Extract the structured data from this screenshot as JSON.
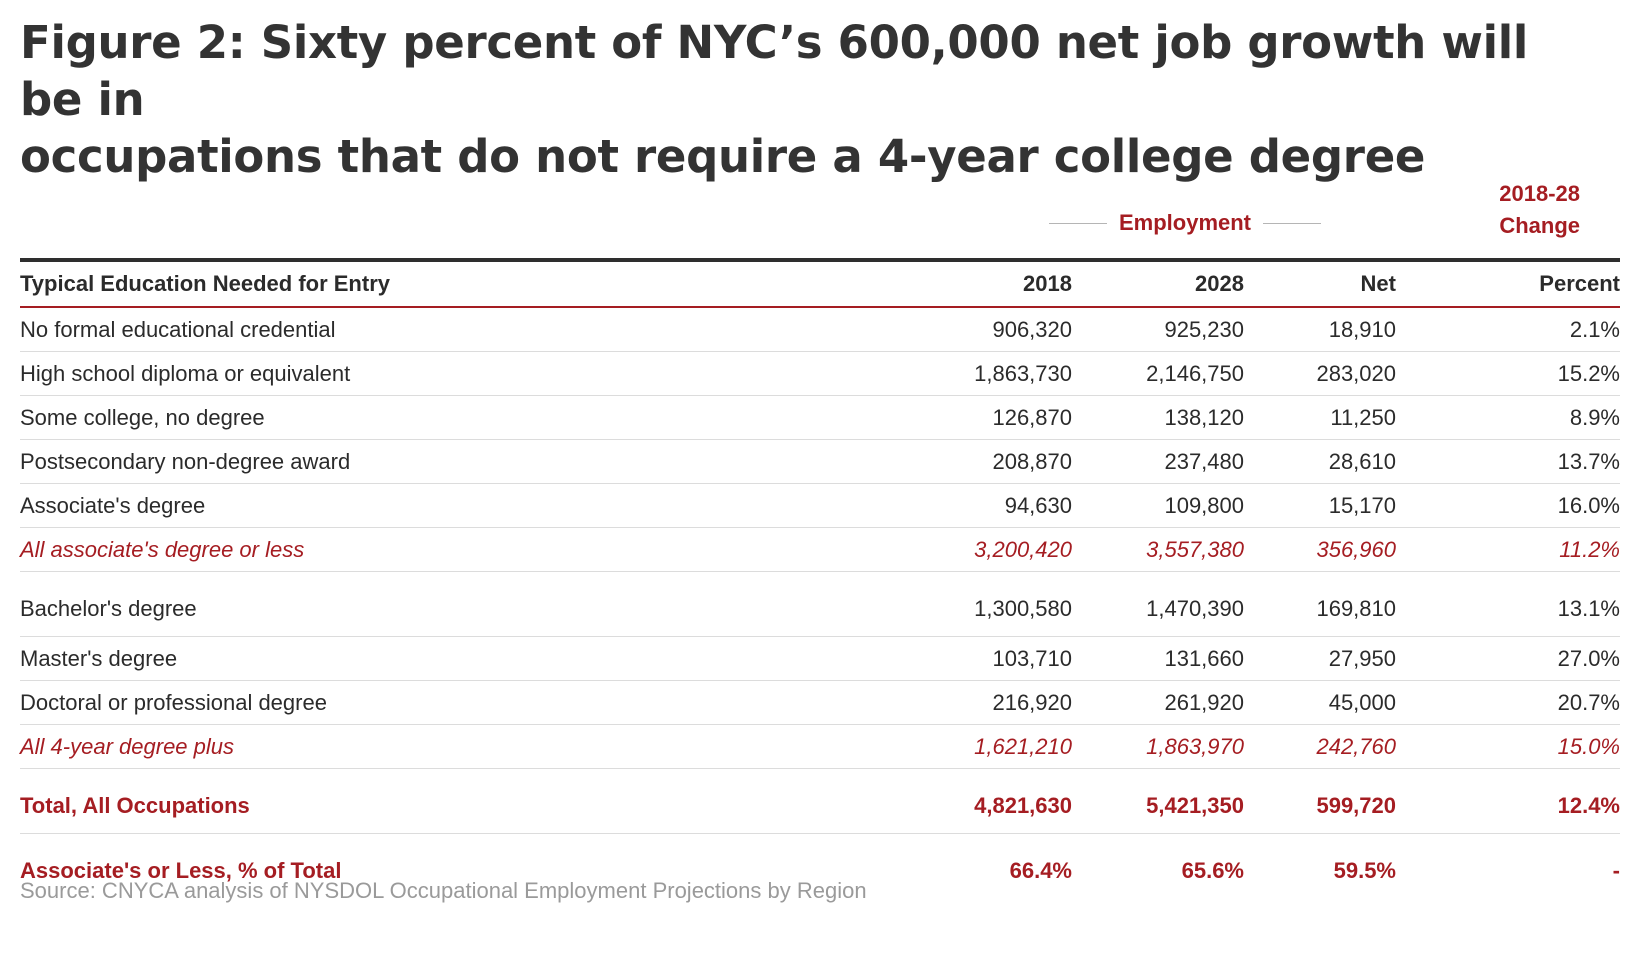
{
  "title": {
    "line1": "Figure 2: Sixty percent of NYC’s 600,000 net job growth will be in",
    "line2": "occupations that do not require a 4-year college degree"
  },
  "group_headers": {
    "employment": "Employment",
    "change_line1": "2018-28",
    "change_line2": "Change"
  },
  "columns": [
    "Typical Education Needed for Entry",
    "2018",
    "2028",
    "Net",
    "Percent"
  ],
  "rows": [
    {
      "label": "No formal educational credential",
      "y2018": "906,320",
      "y2028": "925,230",
      "net": "18,910",
      "pct": "2.1%"
    },
    {
      "label": "High school diploma or equivalent",
      "y2018": "1,863,730",
      "y2028": "2,146,750",
      "net": "283,020",
      "pct": "15.2%"
    },
    {
      "label": "Some college, no degree",
      "y2018": "126,870",
      "y2028": "138,120",
      "net": "11,250",
      "pct": "8.9%"
    },
    {
      "label": "Postsecondary non-degree award",
      "y2018": "208,870",
      "y2028": "237,480",
      "net": "28,610",
      "pct": "13.7%"
    },
    {
      "label": "Associate's degree",
      "y2018": "94,630",
      "y2028": "109,800",
      "net": "15,170",
      "pct": "16.0%"
    },
    {
      "label": "All associate's degree or less",
      "y2018": "3,200,420",
      "y2028": "3,557,380",
      "net": "356,960",
      "pct": "11.2%"
    },
    {
      "label": "Bachelor's degree",
      "y2018": "1,300,580",
      "y2028": "1,470,390",
      "net": "169,810",
      "pct": "13.1%"
    },
    {
      "label": "Master's degree",
      "y2018": "103,710",
      "y2028": "131,660",
      "net": "27,950",
      "pct": "27.0%"
    },
    {
      "label": "Doctoral or professional degree",
      "y2018": "216,920",
      "y2028": "261,920",
      "net": "45,000",
      "pct": "20.7%"
    },
    {
      "label": "All 4-year degree plus",
      "y2018": "1,621,210",
      "y2028": "1,863,970",
      "net": "242,760",
      "pct": "15.0%"
    },
    {
      "label": "Total, All Occupations",
      "y2018": "4,821,630",
      "y2028": "5,421,350",
      "net": "599,720",
      "pct": "12.4%"
    },
    {
      "label": "Associate's or Less, % of Total",
      "y2018": "66.4%",
      "y2028": "65.6%",
      "net": "59.5%",
      "pct": "-"
    }
  ],
  "source": "Source: CNYCA analysis of NYSDOL Occupational Employment Projections by Region",
  "colors": {
    "accent": "#a51d22",
    "text": "#2b2b2b",
    "rule": "#2e2e2e",
    "source": "#9a9a9a"
  },
  "chart_data": {
    "type": "table",
    "title": "Figure 2: Sixty percent of NYC’s 600,000 net job growth will be in occupations that do not require a 4-year college degree",
    "columns": [
      "Typical Education Needed for Entry",
      "2018",
      "2028",
      "Net",
      "Percent"
    ],
    "rows": [
      [
        "No formal educational credential",
        906320,
        925230,
        18910,
        2.1
      ],
      [
        "High school diploma or equivalent",
        1863730,
        2146750,
        283020,
        15.2
      ],
      [
        "Some college, no degree",
        126870,
        138120,
        11250,
        8.9
      ],
      [
        "Postsecondary non-degree award",
        208870,
        237480,
        28610,
        13.7
      ],
      [
        "Associate's degree",
        94630,
        109800,
        15170,
        16.0
      ],
      [
        "All associate's degree or less",
        3200420,
        3557380,
        356960,
        11.2
      ],
      [
        "Bachelor's degree",
        1300580,
        1470390,
        169810,
        13.1
      ],
      [
        "Master's degree",
        103710,
        131660,
        27950,
        27.0
      ],
      [
        "Doctoral or professional degree",
        216920,
        261920,
        45000,
        20.7
      ],
      [
        "All 4-year degree plus",
        1621210,
        1863970,
        242760,
        15.0
      ],
      [
        "Total, All Occupations",
        4821630,
        5421350,
        599720,
        12.4
      ],
      [
        "Associate's or Less, % of Total",
        66.4,
        65.6,
        59.5,
        null
      ]
    ]
  }
}
